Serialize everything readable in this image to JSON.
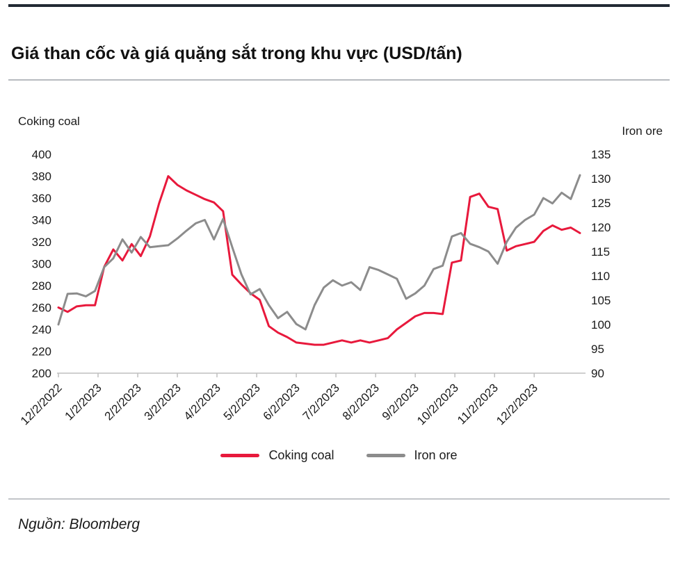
{
  "page": {
    "title": "Giá than cốc và giá quặng sắt trong khu vực (USD/tấn)",
    "source": "Nguồn: Bloomberg"
  },
  "chart_data": {
    "type": "line",
    "title": "Giá than cốc và giá quặng sắt trong khu vực (USD/tấn)",
    "grid": false,
    "legend_position": "bottom",
    "left_axis": {
      "label": "Coking coal",
      "min": 200,
      "max": 400,
      "tick_step": 20
    },
    "right_axis": {
      "label": "Iron ore",
      "min": 90,
      "max": 135,
      "tick_step": 5
    },
    "x_tick_labels": [
      "12/2/2022",
      "1/2/2023",
      "2/2/2023",
      "3/2/2023",
      "4/2/2023",
      "5/2/2023",
      "6/2/2023",
      "7/2/2023",
      "8/2/2023",
      "9/2/2023",
      "10/2/2023",
      "11/2/2023",
      "12/2/2023"
    ],
    "x_tick_weeks": [
      0,
      4.33,
      8.67,
      13,
      17.33,
      21.67,
      26,
      30.33,
      34.67,
      39,
      43.33,
      47.67,
      52
    ],
    "n_points": 58,
    "series": [
      {
        "name": "Coking coal",
        "axis": "left",
        "color": "#e8193c",
        "values": [
          260,
          256,
          261,
          262,
          262,
          297,
          313,
          303,
          318,
          307,
          325,
          355,
          380,
          372,
          367,
          363,
          359,
          356,
          348,
          290,
          281,
          273,
          267,
          243,
          237,
          233,
          228,
          227,
          226,
          226,
          228,
          230,
          228,
          230,
          228,
          230,
          232,
          240,
          246,
          252,
          255,
          255,
          254,
          301,
          303,
          361,
          364,
          352,
          350,
          312,
          316,
          318,
          320,
          330,
          335,
          331,
          333,
          328
        ]
      },
      {
        "name": "Iron ore",
        "axis": "right",
        "color": "#8c8c8c",
        "values": [
          100.0,
          106.3,
          106.4,
          105.8,
          106.9,
          111.8,
          113.6,
          117.5,
          114.8,
          118.0,
          115.9,
          116.1,
          116.3,
          117.7,
          119.3,
          120.8,
          121.5,
          117.5,
          121.7,
          115.9,
          110.3,
          106.2,
          107.3,
          104.0,
          101.3,
          102.6,
          100.1,
          99.0,
          104.0,
          107.6,
          109.1,
          108.0,
          108.7,
          107.1,
          111.8,
          111.2,
          110.3,
          109.4,
          105.3,
          106.4,
          108.0,
          111.4,
          112.1,
          118.1,
          118.8,
          116.6,
          115.9,
          115.0,
          112.5,
          117.0,
          119.9,
          121.5,
          122.6,
          126.0,
          124.9,
          127.1,
          125.8,
          130.7
        ]
      }
    ],
    "legend": [
      "Coking coal",
      "Iron ore"
    ],
    "axis_line_color": "#bfbfbf"
  }
}
